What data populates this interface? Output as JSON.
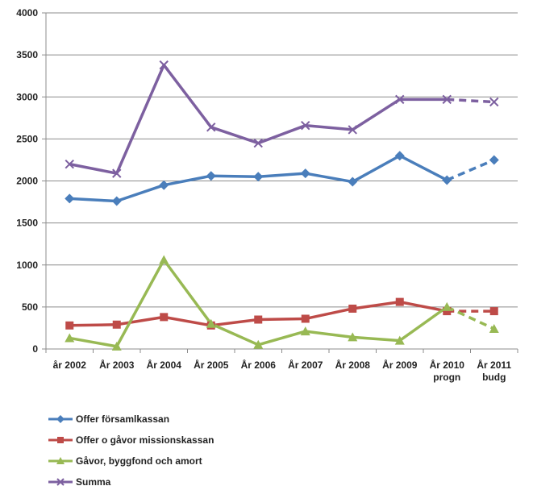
{
  "chart_data": {
    "type": "line",
    "title": "",
    "xlabel": "",
    "ylabel": "",
    "ylim": [
      0,
      4000
    ],
    "yticks": [
      0,
      500,
      1000,
      1500,
      2000,
      2500,
      3000,
      3500,
      4000
    ],
    "grid": true,
    "legend_position": "bottom-left",
    "categories": [
      [
        "år 2002"
      ],
      [
        "År 2003"
      ],
      [
        "År 2004"
      ],
      [
        "År 2005"
      ],
      [
        "År 2006"
      ],
      [
        "År 2007"
      ],
      [
        "År 2008"
      ],
      [
        "År 2009"
      ],
      [
        "År 2010",
        "progn"
      ],
      [
        "År 2011",
        "budg"
      ]
    ],
    "dashed_last_segment": true,
    "series": [
      {
        "name": "Offer församlkassan",
        "color": "#4a7ebb",
        "marker": "diamond",
        "values": [
          1790,
          1760,
          1950,
          2060,
          2050,
          2090,
          1990,
          2300,
          2010,
          2250
        ]
      },
      {
        "name": "Offer o gåvor missionskassan",
        "color": "#be4b48",
        "marker": "square",
        "values": [
          280,
          290,
          380,
          280,
          350,
          360,
          480,
          560,
          450,
          450
        ]
      },
      {
        "name": "Gåvor, byggfond och amort",
        "color": "#98b954",
        "marker": "triangle",
        "values": [
          130,
          30,
          1060,
          300,
          50,
          210,
          140,
          100,
          500,
          240
        ]
      },
      {
        "name": "Summa",
        "color": "#7d60a0",
        "marker": "x",
        "values": [
          2200,
          2090,
          3380,
          2640,
          2450,
          2660,
          2610,
          2970,
          2970,
          2940
        ]
      }
    ]
  }
}
